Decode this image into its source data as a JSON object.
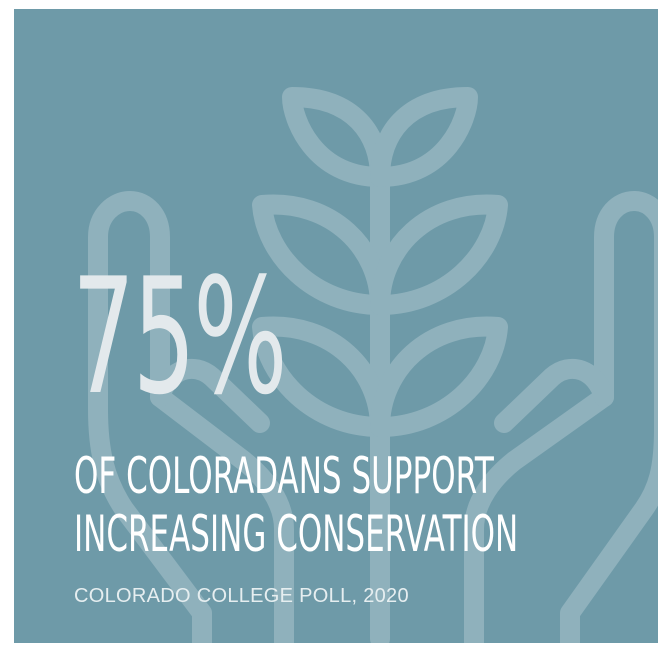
{
  "stat": {
    "value": "75%",
    "headline_line1": "OF COLORADANS SUPPORT",
    "headline_line2": "INCREASING CONSERVATION",
    "source": "COLORADO COLLEGE POLL, 2020"
  },
  "illustration": {
    "icon": "hands-holding-plant-icon"
  },
  "colors": {
    "background": "#6e9aa8",
    "outline": "#8fb1bc",
    "stat_text": "#e3e9ec",
    "headline_text": "#ffffff"
  }
}
